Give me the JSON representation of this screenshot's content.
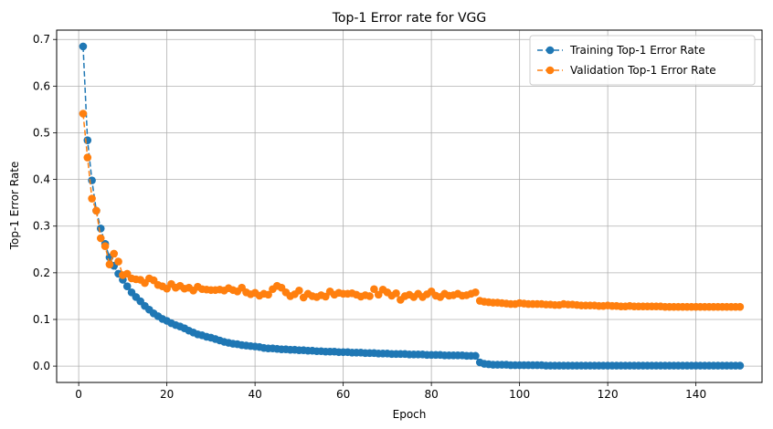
{
  "chart_data": {
    "type": "line",
    "title": "Top-1 Error rate for VGG",
    "xlabel": "Epoch",
    "ylabel": "Top-1 Error Rate",
    "xlim": [
      -5,
      155
    ],
    "ylim": [
      -0.035,
      0.72
    ],
    "xticks": [
      0,
      20,
      40,
      60,
      80,
      100,
      120,
      140
    ],
    "yticks": [
      0.0,
      0.1,
      0.2,
      0.3,
      0.4,
      0.5,
      0.6,
      0.7
    ],
    "ytick_labels": [
      "0.0",
      "0.1",
      "0.2",
      "0.3",
      "0.4",
      "0.5",
      "0.6",
      "0.7"
    ],
    "grid": true,
    "legend_position": "top-right",
    "series": [
      {
        "name": "Training Top-1 Error Rate",
        "color": "#1f77b4",
        "x_start": 1,
        "values": [
          0.685,
          0.484,
          0.398,
          0.333,
          0.295,
          0.262,
          0.233,
          0.215,
          0.198,
          0.185,
          0.171,
          0.158,
          0.148,
          0.139,
          0.129,
          0.121,
          0.113,
          0.107,
          0.101,
          0.097,
          0.092,
          0.088,
          0.085,
          0.081,
          0.076,
          0.072,
          0.068,
          0.066,
          0.063,
          0.061,
          0.058,
          0.055,
          0.052,
          0.05,
          0.048,
          0.047,
          0.045,
          0.044,
          0.043,
          0.042,
          0.041,
          0.039,
          0.038,
          0.038,
          0.037,
          0.036,
          0.036,
          0.035,
          0.035,
          0.034,
          0.034,
          0.033,
          0.033,
          0.032,
          0.032,
          0.031,
          0.031,
          0.031,
          0.03,
          0.03,
          0.03,
          0.029,
          0.029,
          0.029,
          0.028,
          0.028,
          0.028,
          0.027,
          0.027,
          0.027,
          0.026,
          0.026,
          0.026,
          0.026,
          0.025,
          0.025,
          0.025,
          0.025,
          0.024,
          0.024,
          0.024,
          0.024,
          0.023,
          0.023,
          0.023,
          0.023,
          0.023,
          0.022,
          0.022,
          0.022,
          0.008,
          0.005,
          0.004,
          0.003,
          0.003,
          0.003,
          0.003,
          0.002,
          0.002,
          0.002,
          0.002,
          0.002,
          0.002,
          0.002,
          0.002,
          0.001,
          0.001,
          0.001,
          0.001,
          0.001,
          0.001,
          0.001,
          0.001,
          0.001,
          0.001,
          0.001,
          0.001,
          0.001,
          0.001,
          0.001,
          0.001,
          0.001,
          0.001,
          0.001,
          0.001,
          0.001,
          0.001,
          0.001,
          0.001,
          0.001,
          0.001,
          0.001,
          0.001,
          0.001,
          0.001,
          0.001,
          0.001,
          0.001,
          0.001,
          0.001,
          0.001,
          0.001,
          0.001,
          0.001,
          0.001,
          0.001,
          0.001,
          0.001,
          0.001,
          0.001
        ]
      },
      {
        "name": "Validation Top-1 Error Rate",
        "color": "#ff7f0e",
        "x_start": 1,
        "values": [
          0.541,
          0.447,
          0.359,
          0.333,
          0.274,
          0.257,
          0.218,
          0.241,
          0.224,
          0.195,
          0.198,
          0.188,
          0.186,
          0.185,
          0.178,
          0.188,
          0.184,
          0.174,
          0.171,
          0.166,
          0.176,
          0.168,
          0.172,
          0.166,
          0.168,
          0.162,
          0.17,
          0.165,
          0.164,
          0.163,
          0.163,
          0.164,
          0.162,
          0.167,
          0.163,
          0.16,
          0.168,
          0.158,
          0.154,
          0.157,
          0.151,
          0.155,
          0.153,
          0.165,
          0.172,
          0.168,
          0.158,
          0.15,
          0.154,
          0.162,
          0.147,
          0.155,
          0.15,
          0.148,
          0.152,
          0.149,
          0.16,
          0.153,
          0.157,
          0.155,
          0.155,
          0.156,
          0.153,
          0.149,
          0.152,
          0.15,
          0.165,
          0.153,
          0.164,
          0.158,
          0.151,
          0.156,
          0.142,
          0.15,
          0.153,
          0.148,
          0.155,
          0.148,
          0.154,
          0.16,
          0.151,
          0.148,
          0.155,
          0.151,
          0.152,
          0.155,
          0.151,
          0.152,
          0.155,
          0.158,
          0.14,
          0.138,
          0.137,
          0.136,
          0.136,
          0.135,
          0.134,
          0.133,
          0.133,
          0.135,
          0.134,
          0.133,
          0.133,
          0.133,
          0.133,
          0.132,
          0.132,
          0.131,
          0.131,
          0.133,
          0.132,
          0.132,
          0.131,
          0.13,
          0.13,
          0.13,
          0.13,
          0.129,
          0.129,
          0.13,
          0.129,
          0.129,
          0.128,
          0.128,
          0.129,
          0.128,
          0.128,
          0.128,
          0.128,
          0.128,
          0.128,
          0.128,
          0.127,
          0.127,
          0.127,
          0.127,
          0.127,
          0.127,
          0.127,
          0.127,
          0.127,
          0.127,
          0.127,
          0.127,
          0.127,
          0.127,
          0.127,
          0.127,
          0.127,
          0.127
        ]
      }
    ]
  }
}
